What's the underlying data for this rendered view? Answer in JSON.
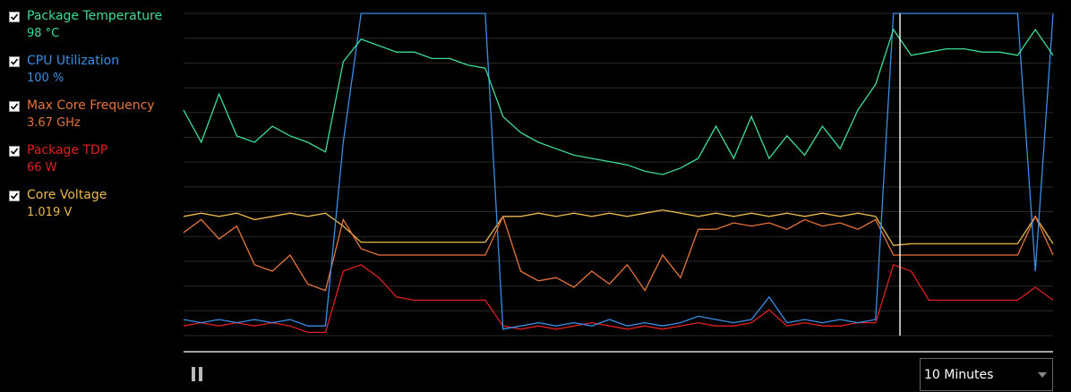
{
  "chart_data": {
    "type": "line",
    "ylim": [
      0,
      100
    ],
    "series": [
      {
        "name": "Package Temperature",
        "reading": "98 °C",
        "color": "#3ddc97",
        "values": [
          70,
          60,
          75,
          62,
          60,
          65,
          62,
          60,
          57,
          85,
          92,
          90,
          88,
          88,
          86,
          86,
          84,
          83,
          68,
          63,
          60,
          58,
          56,
          55,
          54,
          53,
          51,
          50,
          52,
          55,
          65,
          55,
          68,
          55,
          62,
          56,
          65,
          58,
          70,
          78,
          95,
          87,
          88,
          89,
          89,
          88,
          88,
          87,
          95,
          87
        ]
      },
      {
        "name": "CPU Utilization",
        "reading": "100 %",
        "color": "#3a8ee6",
        "values": [
          5,
          4,
          5,
          4,
          5,
          4,
          5,
          3,
          3,
          60,
          100,
          100,
          100,
          100,
          100,
          100,
          100,
          100,
          2,
          3,
          4,
          3,
          4,
          3,
          5,
          3,
          4,
          3,
          4,
          6,
          5,
          4,
          5,
          12,
          4,
          5,
          4,
          5,
          4,
          5,
          100,
          100,
          100,
          100,
          100,
          100,
          100,
          100,
          20,
          100
        ]
      },
      {
        "name": "Max Core Frequency",
        "reading": "3.67 GHz",
        "color": "#e8743b",
        "values": [
          32,
          36,
          30,
          34,
          22,
          20,
          25,
          16,
          14,
          36,
          27,
          25,
          25,
          25,
          25,
          25,
          25,
          25,
          37,
          20,
          17,
          18,
          15,
          20,
          16,
          22,
          14,
          25,
          18,
          33,
          33,
          35,
          34,
          35,
          33,
          36,
          34,
          35,
          33,
          36,
          25,
          25,
          25,
          25,
          25,
          25,
          25,
          25,
          37,
          25
        ]
      },
      {
        "name": "Package TDP",
        "reading": "66 W",
        "color": "#e02020",
        "values": [
          3,
          4,
          3,
          4,
          3,
          4,
          3,
          1,
          1,
          20,
          22,
          18,
          12,
          11,
          11,
          11,
          11,
          11,
          3,
          2,
          3,
          2,
          3,
          4,
          3,
          2,
          3,
          2,
          3,
          4,
          3,
          3,
          4,
          8,
          3,
          4,
          3,
          3,
          4,
          4,
          22,
          20,
          11,
          11,
          11,
          11,
          11,
          11,
          15,
          11
        ]
      },
      {
        "name": "Core Voltage",
        "reading": "1.019 V",
        "color": "#e8b84a",
        "values": [
          37,
          38,
          37,
          38,
          36,
          37,
          38,
          37,
          38,
          34,
          29,
          29,
          29,
          29,
          29,
          29,
          29,
          29,
          37,
          37,
          38,
          37,
          38,
          37,
          38,
          37,
          38,
          39,
          38,
          37,
          38,
          37,
          38,
          37,
          38,
          37,
          38,
          37,
          38,
          37,
          28,
          28.5,
          28.5,
          28.5,
          28.5,
          28.5,
          28.5,
          28.5,
          37,
          28.5
        ]
      }
    ]
  },
  "controls": {
    "range": "10 Minutes"
  }
}
